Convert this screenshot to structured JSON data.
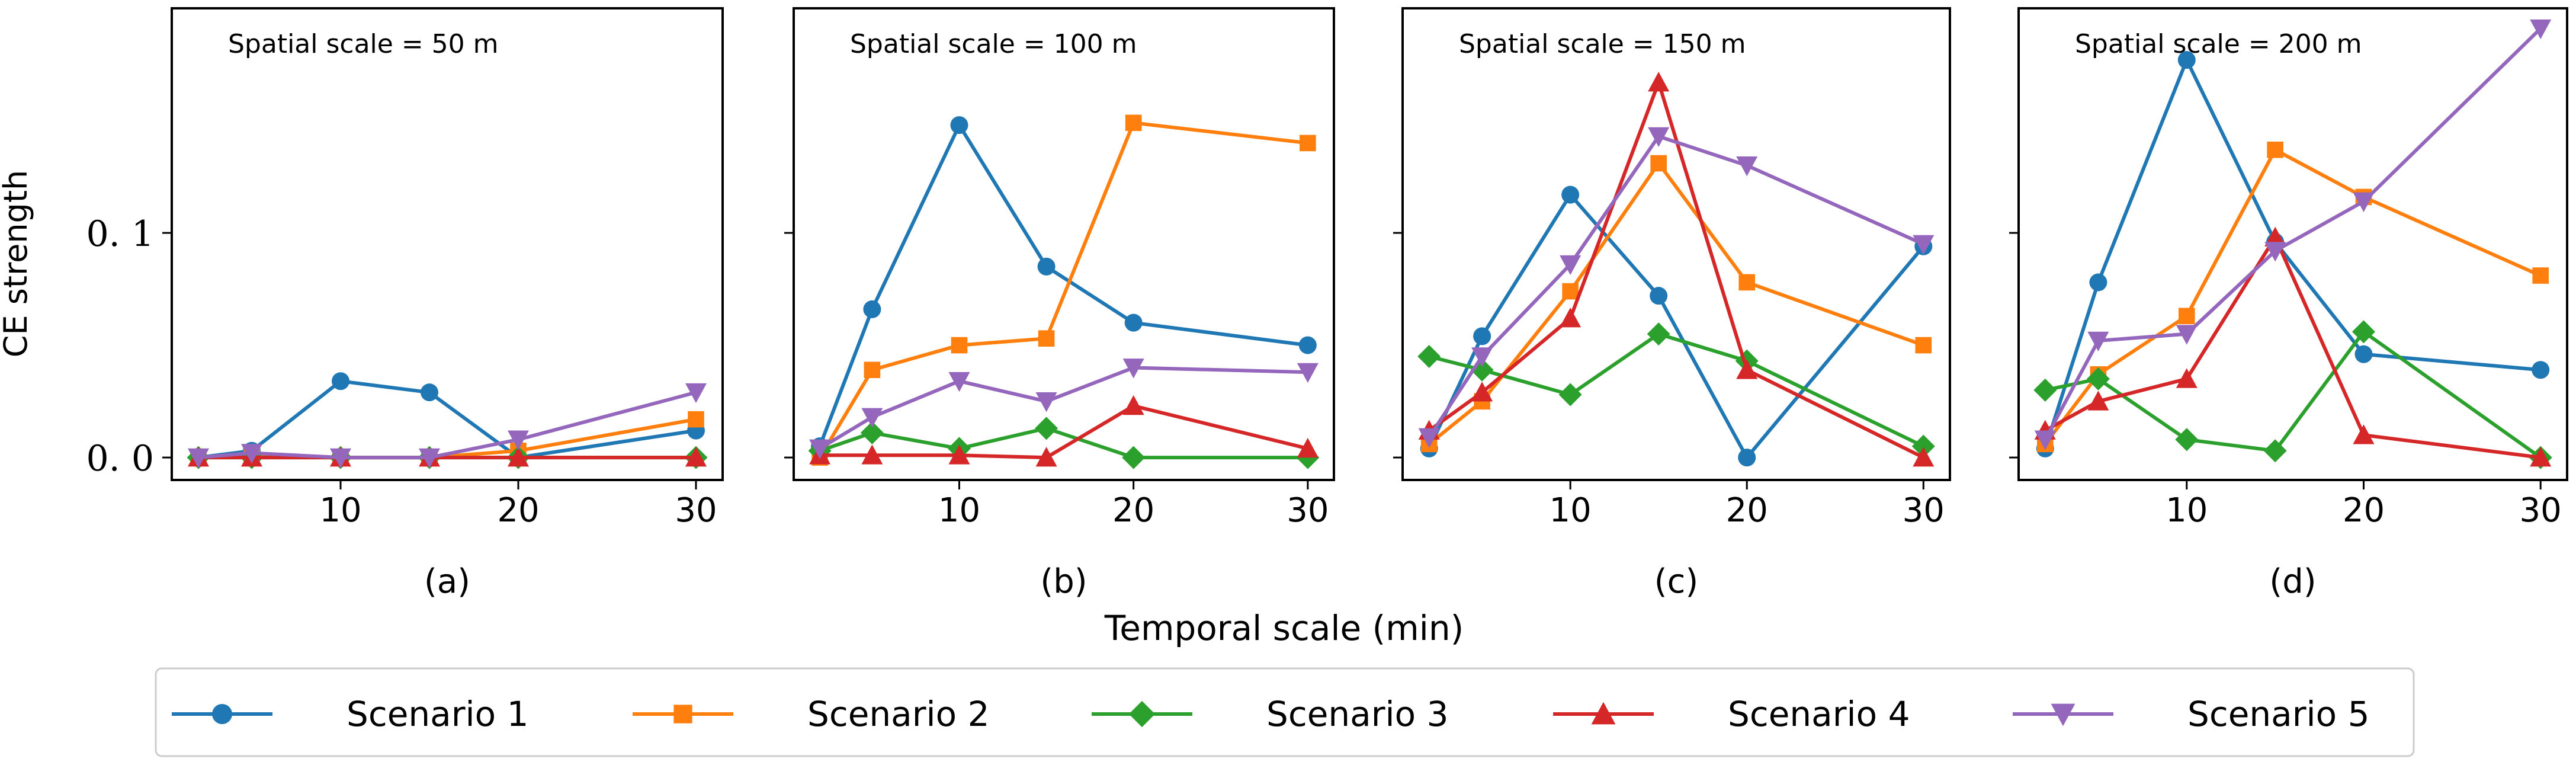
{
  "chart_data": {
    "type": "line",
    "ylabel": "CE strength",
    "xlabel": "Temporal scale (min)",
    "ylim": [
      -0.01,
      0.2
    ],
    "xlim": [
      0.5,
      31.5
    ],
    "x": [
      2,
      5,
      10,
      15,
      20,
      30
    ],
    "xticks": [
      10,
      20,
      30
    ],
    "xtick_labels": [
      "10",
      "20",
      "30"
    ],
    "yticks": [
      0.0,
      0.1
    ],
    "ytick_labels": [
      "0. 0",
      "0. 1"
    ],
    "legend": {
      "position": "bottom",
      "entries": [
        {
          "name": "Scenario 1",
          "color": "#1f77b4",
          "marker": "circle"
        },
        {
          "name": "Scenario 2",
          "color": "#ff7f0e",
          "marker": "square"
        },
        {
          "name": "Scenario 3",
          "color": "#2ca02c",
          "marker": "diamond"
        },
        {
          "name": "Scenario 4",
          "color": "#d62728",
          "marker": "triangle-up"
        },
        {
          "name": "Scenario 5",
          "color": "#9467bd",
          "marker": "triangle-down"
        }
      ]
    },
    "panels": [
      {
        "label": "(a)",
        "title": "Spatial scale = 50 m",
        "series": [
          {
            "name": "Scenario 1",
            "values": [
              0.0,
              0.003,
              0.034,
              0.029,
              0.0,
              0.012
            ]
          },
          {
            "name": "Scenario 2",
            "values": [
              0.0,
              0.001,
              0.0,
              0.0,
              0.003,
              0.017
            ]
          },
          {
            "name": "Scenario 3",
            "values": [
              0.0,
              0.0,
              0.0,
              0.0,
              0.0,
              0.0
            ]
          },
          {
            "name": "Scenario 4",
            "values": [
              0.0,
              0.0,
              0.0,
              0.0,
              0.0,
              0.0
            ]
          },
          {
            "name": "Scenario 5",
            "values": [
              0.0,
              0.002,
              0.0,
              0.0,
              0.008,
              0.029
            ]
          }
        ]
      },
      {
        "label": "(b)",
        "title": "Spatial scale = 100 m",
        "series": [
          {
            "name": "Scenario 1",
            "values": [
              0.005,
              0.066,
              0.148,
              0.085,
              0.06,
              0.05
            ]
          },
          {
            "name": "Scenario 2",
            "values": [
              0.0,
              0.039,
              0.05,
              0.053,
              0.149,
              0.14
            ]
          },
          {
            "name": "Scenario 3",
            "values": [
              0.003,
              0.011,
              0.004,
              0.013,
              0.0,
              0.0
            ]
          },
          {
            "name": "Scenario 4",
            "values": [
              0.001,
              0.001,
              0.001,
              0.0,
              0.023,
              0.004
            ]
          },
          {
            "name": "Scenario 5",
            "values": [
              0.004,
              0.018,
              0.034,
              0.025,
              0.04,
              0.038
            ]
          }
        ]
      },
      {
        "label": "(c)",
        "title": "Spatial scale = 150 m",
        "series": [
          {
            "name": "Scenario 1",
            "values": [
              0.004,
              0.054,
              0.117,
              0.072,
              0.0,
              0.094
            ]
          },
          {
            "name": "Scenario 2",
            "values": [
              0.006,
              0.025,
              0.074,
              0.131,
              0.078,
              0.05
            ]
          },
          {
            "name": "Scenario 3",
            "values": [
              0.045,
              0.039,
              0.028,
              0.055,
              0.043,
              0.005
            ]
          },
          {
            "name": "Scenario 4",
            "values": [
              0.012,
              0.029,
              0.062,
              0.167,
              0.039,
              0.0
            ]
          },
          {
            "name": "Scenario 5",
            "values": [
              0.009,
              0.045,
              0.086,
              0.143,
              0.13,
              0.095
            ]
          }
        ]
      },
      {
        "label": "(d)",
        "title": "Spatial scale = 200 m",
        "series": [
          {
            "name": "Scenario 1",
            "values": [
              0.004,
              0.078,
              0.177,
              0.096,
              0.046,
              0.039
            ]
          },
          {
            "name": "Scenario 2",
            "values": [
              0.006,
              0.037,
              0.063,
              0.137,
              0.116,
              0.081
            ]
          },
          {
            "name": "Scenario 3",
            "values": [
              0.03,
              0.035,
              0.008,
              0.003,
              0.056,
              0.0
            ]
          },
          {
            "name": "Scenario 4",
            "values": [
              0.012,
              0.025,
              0.035,
              0.098,
              0.01,
              0.0
            ]
          },
          {
            "name": "Scenario 5",
            "values": [
              0.008,
              0.052,
              0.055,
              0.092,
              0.114,
              0.191
            ]
          }
        ]
      }
    ]
  }
}
